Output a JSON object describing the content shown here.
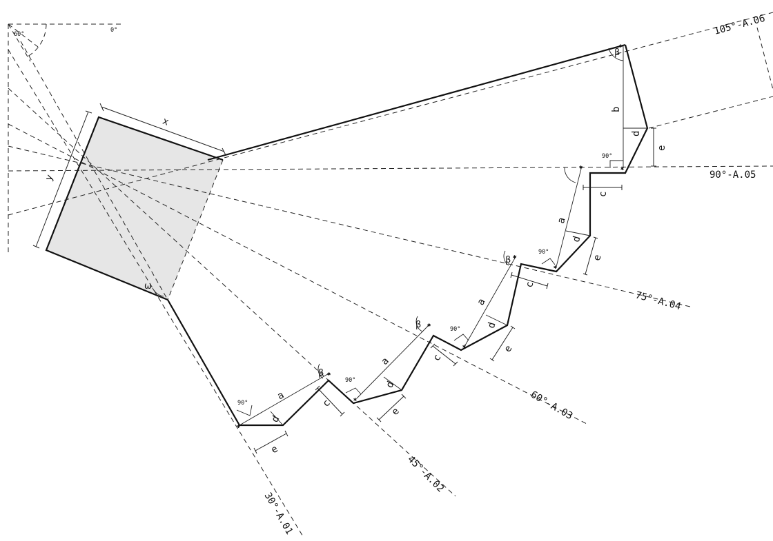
{
  "axes": {
    "a01": "30°-A.01",
    "a02": "45°-A.02",
    "a03": "60°-A.03",
    "a04": "75°-A.04",
    "a05": "90°-A.05",
    "a06": "105°-A.06"
  },
  "protractor": {
    "angle_60": "60°",
    "angle_0": "0°"
  },
  "dimensions": {
    "x": "x",
    "y": "y",
    "a": "a",
    "b": "b",
    "c": "c",
    "d": "d",
    "e": "e"
  },
  "angles": {
    "beta": "β",
    "omega": "ω",
    "right": "90°"
  },
  "colors": {
    "fill": "#e6e6e6",
    "ink": "#111111"
  }
}
